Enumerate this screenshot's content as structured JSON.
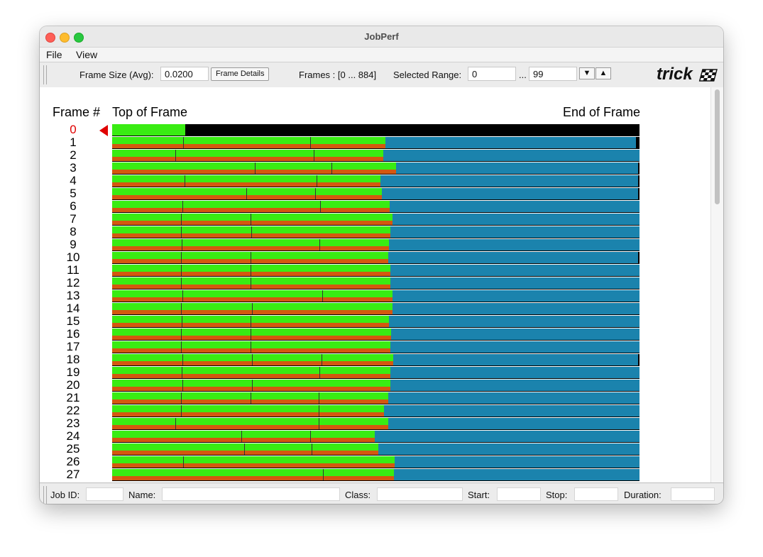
{
  "window": {
    "title": "JobPerf"
  },
  "menu": {
    "items": [
      "File",
      "View"
    ]
  },
  "toolbar": {
    "frame_size_label": "Frame Size (Avg):",
    "frame_size_value": "0.0200",
    "frame_details_label": "Frame Details",
    "frames_label": "Frames : [0 ... 884]",
    "selected_range_label": "Selected Range:",
    "range_start": "0",
    "range_sep": "...",
    "range_end": "99",
    "down_label": "▼",
    "up_label": "▲",
    "logo_text": "trick"
  },
  "chart": {
    "frame_header": "Frame #",
    "top_header": "Top of Frame",
    "end_header": "End of Frame",
    "selected_frame": 0,
    "frames": [
      {
        "n": "0",
        "g": 0.139,
        "t": [],
        "o": 0.0,
        "b": 0.0
      },
      {
        "n": "1",
        "g": 0.518,
        "t": [
          0.135,
          0.376
        ],
        "o": 0.518,
        "b": 0.993
      },
      {
        "n": "2",
        "g": 0.514,
        "t": [
          0.12,
          0.382
        ],
        "o": 0.514,
        "b": 1.0
      },
      {
        "n": "3",
        "g": 0.539,
        "t": [
          0.27,
          0.416
        ],
        "o": 0.539,
        "b": 0.998
      },
      {
        "n": "4",
        "g": 0.509,
        "t": [
          0.137,
          0.388
        ],
        "o": 0.509,
        "b": 0.998
      },
      {
        "n": "5",
        "g": 0.512,
        "t": [
          0.255,
          0.385
        ],
        "o": 0.512,
        "b": 0.998
      },
      {
        "n": "6",
        "g": 0.526,
        "t": [
          0.133,
          0.394
        ],
        "o": 0.526,
        "b": 1.0
      },
      {
        "n": "7",
        "g": 0.532,
        "t": [
          0.131,
          0.262
        ],
        "o": 0.532,
        "b": 1.0
      },
      {
        "n": "8",
        "g": 0.527,
        "t": [
          0.131,
          0.264
        ],
        "o": 0.527,
        "b": 1.0
      },
      {
        "n": "9",
        "g": 0.525,
        "t": [
          0.132,
          0.393
        ],
        "o": 0.525,
        "b": 1.0
      },
      {
        "n": "10",
        "g": 0.524,
        "t": [
          0.131,
          0.262
        ],
        "o": 0.524,
        "b": 0.998
      },
      {
        "n": "11",
        "g": 0.528,
        "t": [
          0.131,
          0.262
        ],
        "o": 0.528,
        "b": 1.0
      },
      {
        "n": "12",
        "g": 0.527,
        "t": [
          0.131,
          0.262
        ],
        "o": 0.527,
        "b": 1.0
      },
      {
        "n": "13",
        "g": 0.532,
        "t": [
          0.133,
          0.399
        ],
        "o": 0.532,
        "b": 1.0
      },
      {
        "n": "14",
        "g": 0.532,
        "t": [
          0.131,
          0.265
        ],
        "o": 0.532,
        "b": 1.0
      },
      {
        "n": "15",
        "g": 0.525,
        "t": [
          0.132,
          0.262
        ],
        "o": 0.525,
        "b": 1.0
      },
      {
        "n": "16",
        "g": 0.529,
        "t": [
          0.131,
          0.263
        ],
        "o": 0.529,
        "b": 1.0
      },
      {
        "n": "17",
        "g": 0.528,
        "t": [
          0.131,
          0.262
        ],
        "o": 0.528,
        "b": 1.0
      },
      {
        "n": "18",
        "g": 0.533,
        "t": [
          0.133,
          0.265,
          0.397
        ],
        "o": 0.533,
        "b": 0.998
      },
      {
        "n": "19",
        "g": 0.527,
        "t": [
          0.132,
          0.393
        ],
        "o": 0.527,
        "b": 1.0
      },
      {
        "n": "20",
        "g": 0.528,
        "t": [
          0.133,
          0.265
        ],
        "o": 0.528,
        "b": 1.0
      },
      {
        "n": "21",
        "g": 0.524,
        "t": [
          0.131,
          0.262,
          0.392
        ],
        "o": 0.524,
        "b": 1.0
      },
      {
        "n": "22",
        "g": 0.515,
        "t": [
          0.13,
          0.392
        ],
        "o": 0.515,
        "b": 1.0
      },
      {
        "n": "23",
        "g": 0.524,
        "t": [
          0.12,
          0.391
        ],
        "o": 0.524,
        "b": 1.0
      },
      {
        "n": "24",
        "g": 0.498,
        "t": [
          0.245,
          0.375
        ],
        "o": 0.498,
        "b": 1.0
      },
      {
        "n": "25",
        "g": 0.505,
        "t": [
          0.25,
          0.378
        ],
        "o": 0.505,
        "b": 1.0
      },
      {
        "n": "26",
        "g": 0.536,
        "t": [
          0.135
        ],
        "o": 0.536,
        "b": 1.0
      },
      {
        "n": "27",
        "g": 0.534,
        "t": [
          0.4
        ],
        "o": 0.534,
        "b": 1.0
      }
    ]
  },
  "status": {
    "job_id_label": "Job ID:",
    "name_label": "Name:",
    "class_label": "Class:",
    "start_label": "Start:",
    "stop_label": "Stop:",
    "duration_label": "Duration:"
  }
}
